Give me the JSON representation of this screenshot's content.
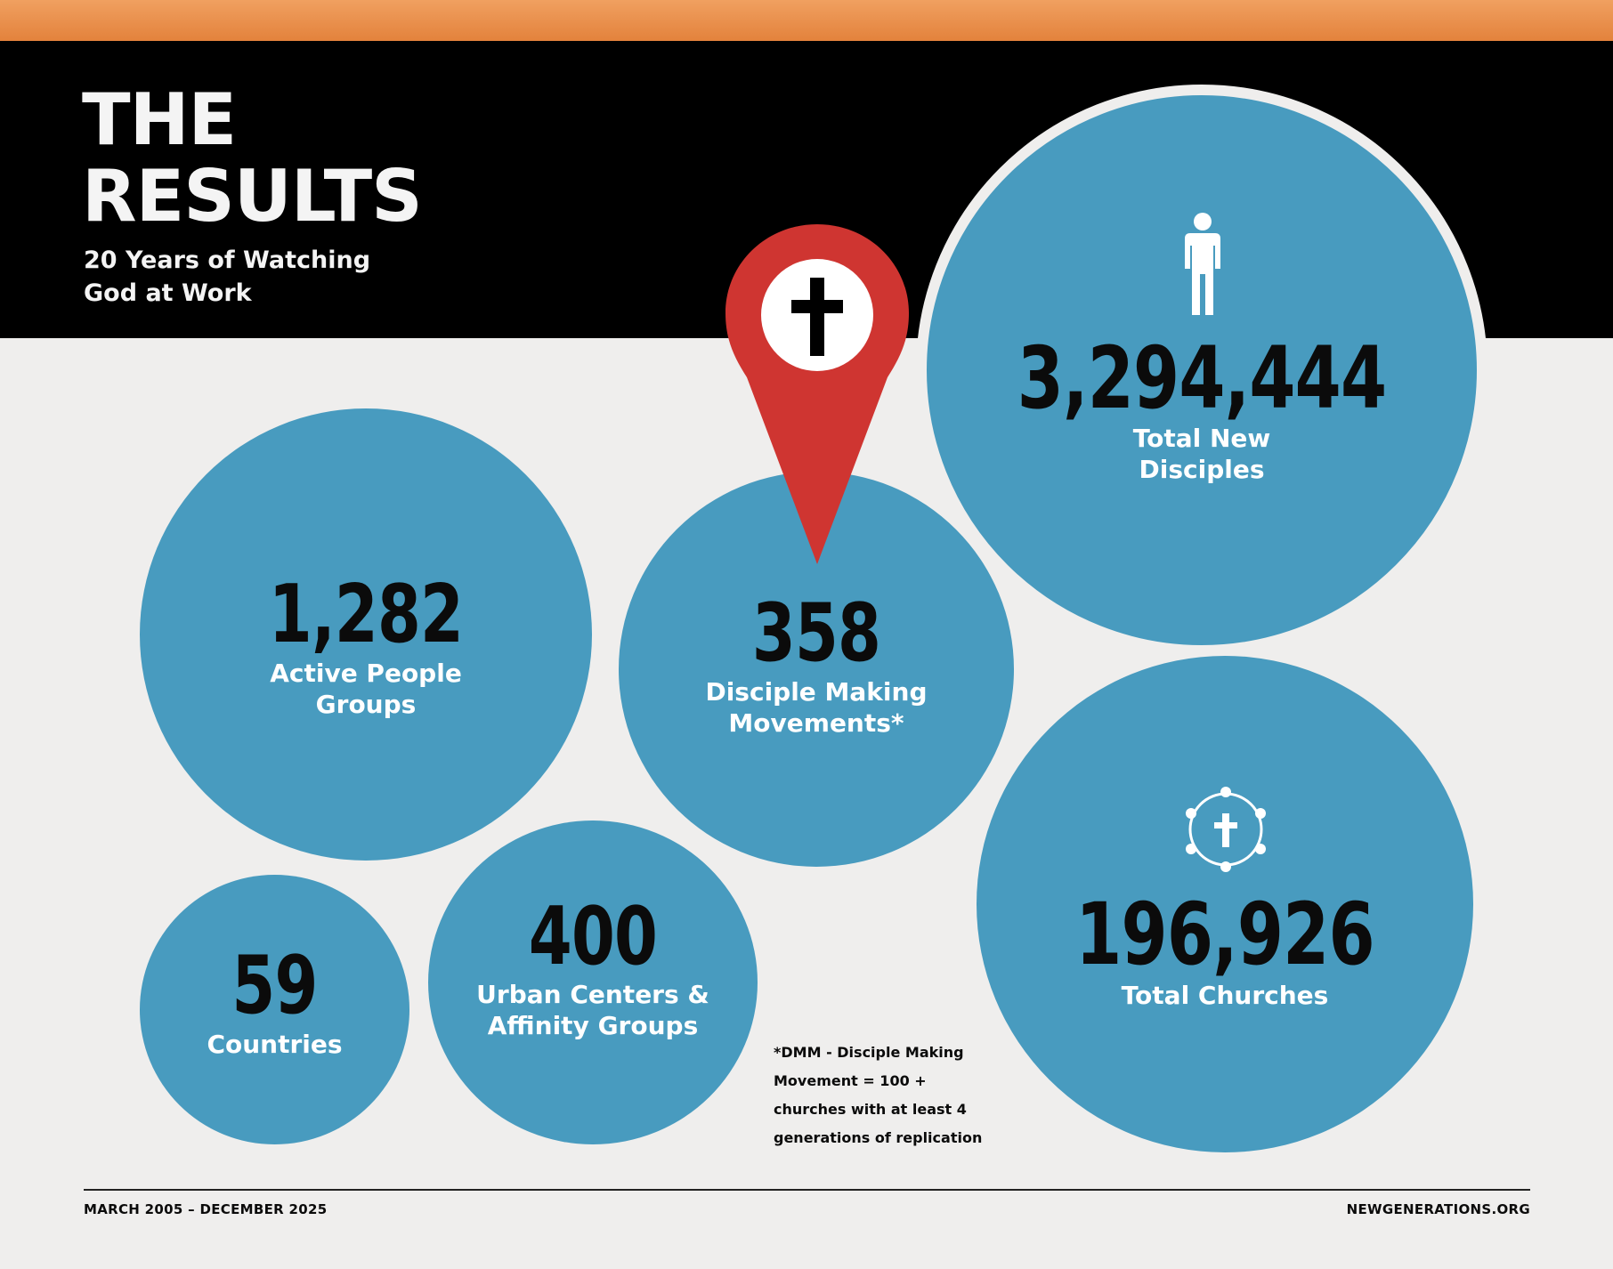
{
  "header": {
    "title_line1": "THE",
    "title_line2": "RESULTS",
    "subtitle_line1": "20 Years of Watching",
    "subtitle_line2": "God at Work"
  },
  "stats": {
    "disciples": {
      "value": "3,294,444",
      "label_line1": "Total New",
      "label_line2": "Disciples",
      "icon": "person-icon"
    },
    "people_groups": {
      "value": "1,282",
      "label_line1": "Active People",
      "label_line2": "Groups"
    },
    "dmm": {
      "value": "358",
      "label_line1": "Disciple Making",
      "label_line2": "Movements*",
      "icon": "location-pin-cross-icon"
    },
    "churches": {
      "value": "196,926",
      "label_line1": "Total Churches",
      "icon": "church-circle-cross-icon"
    },
    "countries": {
      "value": "59",
      "label_line1": "Countries"
    },
    "urban": {
      "value": "400",
      "label_line1": "Urban Centers &",
      "label_line2": "Affinity Groups"
    }
  },
  "footnote": {
    "line1": "*DMM - Disciple Making",
    "line2": "Movement = 100 +",
    "line3": "churches with at least 4",
    "line4": "generations of replication"
  },
  "footer": {
    "date_range": "MARCH 2005 – DECEMBER 2025",
    "website": "NEWGENERATIONS.ORG"
  },
  "colors": {
    "accent_orange": "#e3823c",
    "header_black": "#000000",
    "circle_blue": "#489bbf",
    "pin_red": "#cf3531",
    "background": "#efeeed"
  }
}
